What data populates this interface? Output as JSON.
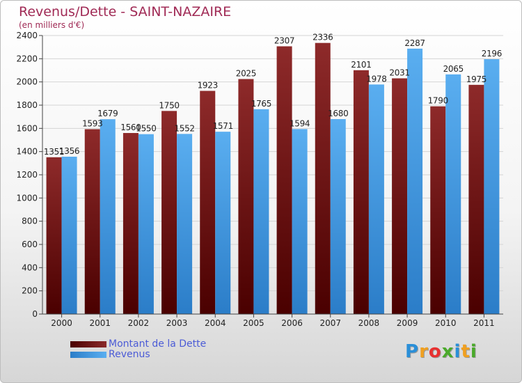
{
  "title": "Revenus/Dette - SAINT-NAZAIRE",
  "subtitle": "(en milliers d'€)",
  "logo": {
    "text": "Proxiti",
    "letters": [
      "P",
      "r",
      "o",
      "x",
      "i",
      "t",
      "i"
    ],
    "letter_colors": [
      "#2a8fd8",
      "#f0a020",
      "#e83030",
      "#4aaa2a",
      "#2a8fd8",
      "#f0a020",
      "#4aaa2a"
    ]
  },
  "chart_data": {
    "type": "bar",
    "categories": [
      "2000",
      "2001",
      "2002",
      "2003",
      "2004",
      "2005",
      "2006",
      "2007",
      "2008",
      "2009",
      "2010",
      "2011"
    ],
    "series": [
      {
        "name": "Montant de la Dette",
        "color": "#7a1a1a",
        "values": [
          1351,
          1593,
          1560,
          1750,
          1923,
          2025,
          2307,
          2336,
          2101,
          2031,
          1790,
          1975
        ],
        "labels": [
          "1351",
          "1593",
          "1560",
          "1750",
          "1923",
          "2025",
          "2307",
          "2336",
          "2101",
          "2031",
          "1790",
          "1975"
        ]
      },
      {
        "name": "Revenus",
        "color": "#4a9fe0",
        "values": [
          1356,
          1679,
          1550,
          1552,
          1571,
          1765,
          1594,
          1680,
          1978,
          2287,
          2065,
          2196
        ],
        "labels": [
          "1356",
          "1679",
          "1550",
          "1552",
          "1571",
          "1765",
          "1594",
          "1680",
          "1978",
          "2287",
          "2065",
          "2196"
        ]
      }
    ],
    "yticks": [
      0,
      200,
      400,
      600,
      800,
      1000,
      1200,
      1400,
      1600,
      1800,
      2000,
      2200,
      2400
    ],
    "ylim": [
      0,
      2400
    ],
    "grid": true,
    "legend_position": "bottom-left"
  }
}
